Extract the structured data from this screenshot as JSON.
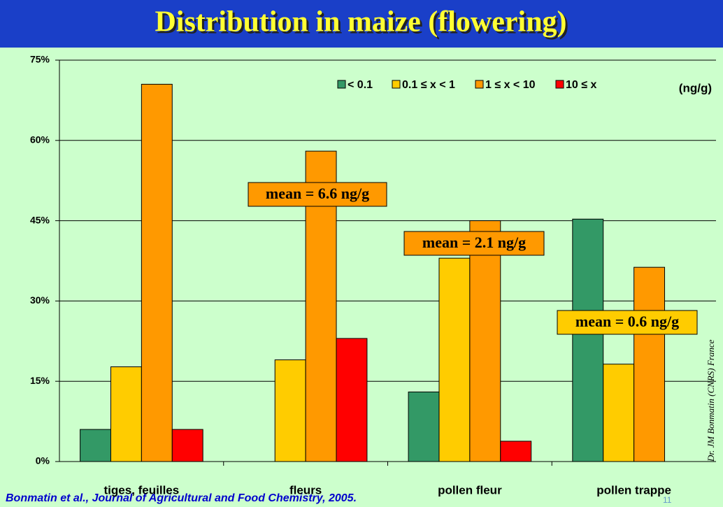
{
  "chart_data": {
    "type": "bar",
    "title": "Distribution in maize (flowering)",
    "categories": [
      "tiges, feuilles",
      "fleurs",
      "pollen fleur",
      "pollen trappe"
    ],
    "series": [
      {
        "name": "< 0.1",
        "color": "#339966",
        "values": [
          6,
          0,
          13,
          45.3
        ]
      },
      {
        "name": "0.1 ≤ x < 1",
        "color": "#ffcc00",
        "values": [
          17.7,
          19,
          38,
          18.2
        ]
      },
      {
        "name": "1 ≤ x < 10",
        "color": "#ff9900",
        "values": [
          70.5,
          58,
          45,
          36.3
        ]
      },
      {
        "name": "10 ≤ x",
        "color": "#ff0000",
        "values": [
          6,
          23,
          3.8,
          0
        ]
      }
    ],
    "ylim": [
      0,
      75
    ],
    "yticks": [
      {
        "value": 0,
        "label": "0%"
      },
      {
        "value": 15,
        "label": "15%"
      },
      {
        "value": 30,
        "label": "30%"
      },
      {
        "value": 45,
        "label": "45%"
      },
      {
        "value": 60,
        "label": "60%"
      },
      {
        "value": 75,
        "label": "75%"
      }
    ],
    "grid": true,
    "unit_label": "(ng/g)",
    "annotations": [
      {
        "text": "mean = 6.6 ng/g",
        "color": "#ff9900"
      },
      {
        "text": "mean = 2.1 ng/g",
        "color": "#ff9900"
      },
      {
        "text": "mean = 0.6 ng/g",
        "color": "#ffcc00"
      }
    ],
    "source": "Bonmatin et al., Journal of Agricultural and Food Chemistry, 2005.",
    "credit": "Dr. JM Bonmatin (CNRS) France",
    "page_number": "11"
  }
}
